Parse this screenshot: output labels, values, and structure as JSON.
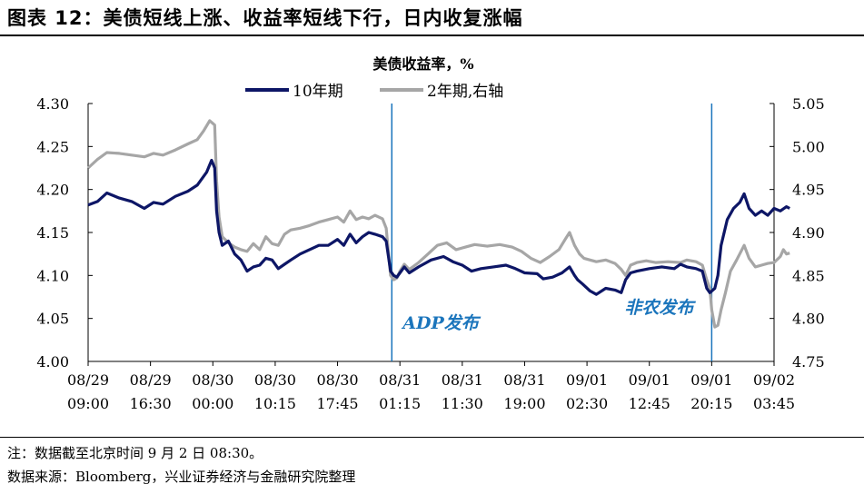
{
  "figure": {
    "title": "图表 12：美债短线上涨、收益率短线下行，日内收复涨幅",
    "note": "注：数据截至北京时间 9 月 2 日 08:30。",
    "source": "数据来源：Bloomberg，兴业证券经济与金融研究院整理"
  },
  "chart_data": {
    "type": "line",
    "title": "美债收益率，%",
    "x_tick_labels": [
      [
        "08/29",
        "09:00"
      ],
      [
        "08/29",
        "16:30"
      ],
      [
        "08/30",
        "00:00"
      ],
      [
        "08/30",
        "10:15"
      ],
      [
        "08/30",
        "17:45"
      ],
      [
        "08/31",
        "01:15"
      ],
      [
        "08/31",
        "11:30"
      ],
      [
        "08/31",
        "19:00"
      ],
      [
        "09/01",
        "02:30"
      ],
      [
        "09/01",
        "12:45"
      ],
      [
        "09/01",
        "20:15"
      ],
      [
        "09/02",
        "03:45"
      ]
    ],
    "x_range": [
      0,
      11
    ],
    "y_left": {
      "range": [
        4.0,
        4.3
      ],
      "ticks": [
        "4.00",
        "4.05",
        "4.10",
        "4.15",
        "4.20",
        "4.25",
        "4.30"
      ]
    },
    "y_right": {
      "range": [
        4.75,
        5.05
      ],
      "ticks": [
        "4.75",
        "4.80",
        "4.85",
        "4.90",
        "4.95",
        "5.00",
        "5.05"
      ]
    },
    "series": [
      {
        "name": "10年期",
        "axis": "left",
        "color": "#0d1666",
        "points": [
          [
            0,
            4.182
          ],
          [
            0.15,
            4.186
          ],
          [
            0.3,
            4.196
          ],
          [
            0.5,
            4.19
          ],
          [
            0.7,
            4.186
          ],
          [
            0.9,
            4.178
          ],
          [
            1.05,
            4.185
          ],
          [
            1.2,
            4.183
          ],
          [
            1.4,
            4.192
          ],
          [
            1.6,
            4.198
          ],
          [
            1.75,
            4.205
          ],
          [
            1.9,
            4.22
          ],
          [
            1.98,
            4.234
          ],
          [
            2.03,
            4.225
          ],
          [
            2.06,
            4.175
          ],
          [
            2.1,
            4.15
          ],
          [
            2.15,
            4.135
          ],
          [
            2.25,
            4.14
          ],
          [
            2.35,
            4.125
          ],
          [
            2.45,
            4.118
          ],
          [
            2.55,
            4.105
          ],
          [
            2.65,
            4.11
          ],
          [
            2.75,
            4.112
          ],
          [
            2.85,
            4.12
          ],
          [
            2.95,
            4.118
          ],
          [
            3.05,
            4.108
          ],
          [
            3.15,
            4.113
          ],
          [
            3.25,
            4.118
          ],
          [
            3.4,
            4.125
          ],
          [
            3.55,
            4.13
          ],
          [
            3.7,
            4.135
          ],
          [
            3.85,
            4.135
          ],
          [
            4.0,
            4.142
          ],
          [
            4.1,
            4.135
          ],
          [
            4.2,
            4.148
          ],
          [
            4.3,
            4.138
          ],
          [
            4.4,
            4.145
          ],
          [
            4.5,
            4.15
          ],
          [
            4.6,
            4.148
          ],
          [
            4.72,
            4.145
          ],
          [
            4.78,
            4.14
          ],
          [
            4.85,
            4.105
          ],
          [
            4.9,
            4.1
          ],
          [
            4.95,
            4.098
          ],
          [
            5.0,
            4.103
          ],
          [
            5.07,
            4.11
          ],
          [
            5.15,
            4.103
          ],
          [
            5.3,
            4.11
          ],
          [
            5.5,
            4.118
          ],
          [
            5.7,
            4.122
          ],
          [
            5.85,
            4.116
          ],
          [
            6.0,
            4.112
          ],
          [
            6.15,
            4.105
          ],
          [
            6.3,
            4.108
          ],
          [
            6.5,
            4.11
          ],
          [
            6.7,
            4.112
          ],
          [
            6.85,
            4.108
          ],
          [
            7.0,
            4.103
          ],
          [
            7.2,
            4.102
          ],
          [
            7.3,
            4.096
          ],
          [
            7.45,
            4.098
          ],
          [
            7.6,
            4.103
          ],
          [
            7.72,
            4.11
          ],
          [
            7.8,
            4.1
          ],
          [
            7.85,
            4.095
          ],
          [
            7.93,
            4.09
          ],
          [
            8.05,
            4.082
          ],
          [
            8.15,
            4.078
          ],
          [
            8.3,
            4.085
          ],
          [
            8.45,
            4.083
          ],
          [
            8.55,
            4.08
          ],
          [
            8.62,
            4.095
          ],
          [
            8.7,
            4.103
          ],
          [
            8.8,
            4.105
          ],
          [
            9.0,
            4.108
          ],
          [
            9.2,
            4.11
          ],
          [
            9.4,
            4.108
          ],
          [
            9.5,
            4.113
          ],
          [
            9.6,
            4.11
          ],
          [
            9.75,
            4.108
          ],
          [
            9.85,
            4.105
          ],
          [
            9.92,
            4.085
          ],
          [
            9.97,
            4.08
          ],
          [
            10.05,
            4.085
          ],
          [
            10.1,
            4.1
          ],
          [
            10.15,
            4.135
          ],
          [
            10.25,
            4.165
          ],
          [
            10.35,
            4.178
          ],
          [
            10.45,
            4.185
          ],
          [
            10.52,
            4.195
          ],
          [
            10.6,
            4.178
          ],
          [
            10.7,
            4.17
          ],
          [
            10.8,
            4.175
          ],
          [
            10.9,
            4.17
          ],
          [
            11.0,
            4.178
          ],
          [
            11.1,
            4.175
          ],
          [
            11.2,
            4.18
          ],
          [
            11.25,
            4.178
          ]
        ]
      },
      {
        "name": "2年期,右轴",
        "axis": "right",
        "color": "#a6a6a6",
        "points": [
          [
            0,
            4.975
          ],
          [
            0.15,
            4.985
          ],
          [
            0.3,
            4.993
          ],
          [
            0.5,
            4.992
          ],
          [
            0.7,
            4.99
          ],
          [
            0.9,
            4.988
          ],
          [
            1.05,
            4.992
          ],
          [
            1.2,
            4.99
          ],
          [
            1.4,
            4.996
          ],
          [
            1.6,
            5.003
          ],
          [
            1.75,
            5.008
          ],
          [
            1.85,
            5.018
          ],
          [
            1.95,
            5.03
          ],
          [
            2.03,
            5.025
          ],
          [
            2.06,
            4.96
          ],
          [
            2.1,
            4.918
          ],
          [
            2.15,
            4.895
          ],
          [
            2.25,
            4.888
          ],
          [
            2.35,
            4.883
          ],
          [
            2.45,
            4.88
          ],
          [
            2.55,
            4.878
          ],
          [
            2.65,
            4.887
          ],
          [
            2.75,
            4.88
          ],
          [
            2.85,
            4.895
          ],
          [
            2.95,
            4.887
          ],
          [
            3.05,
            4.885
          ],
          [
            3.15,
            4.898
          ],
          [
            3.25,
            4.903
          ],
          [
            3.4,
            4.905
          ],
          [
            3.55,
            4.908
          ],
          [
            3.7,
            4.912
          ],
          [
            3.85,
            4.915
          ],
          [
            4.0,
            4.918
          ],
          [
            4.1,
            4.912
          ],
          [
            4.2,
            4.925
          ],
          [
            4.3,
            4.915
          ],
          [
            4.4,
            4.918
          ],
          [
            4.5,
            4.916
          ],
          [
            4.6,
            4.92
          ],
          [
            4.72,
            4.916
          ],
          [
            4.78,
            4.905
          ],
          [
            4.85,
            4.85
          ],
          [
            4.9,
            4.845
          ],
          [
            4.95,
            4.847
          ],
          [
            5.0,
            4.855
          ],
          [
            5.07,
            4.863
          ],
          [
            5.15,
            4.857
          ],
          [
            5.3,
            4.865
          ],
          [
            5.45,
            4.875
          ],
          [
            5.6,
            4.885
          ],
          [
            5.75,
            4.888
          ],
          [
            5.9,
            4.88
          ],
          [
            6.05,
            4.883
          ],
          [
            6.2,
            4.886
          ],
          [
            6.4,
            4.884
          ],
          [
            6.6,
            4.886
          ],
          [
            6.8,
            4.883
          ],
          [
            6.95,
            4.878
          ],
          [
            7.1,
            4.87
          ],
          [
            7.25,
            4.865
          ],
          [
            7.4,
            4.872
          ],
          [
            7.55,
            4.88
          ],
          [
            7.65,
            4.892
          ],
          [
            7.72,
            4.9
          ],
          [
            7.8,
            4.885
          ],
          [
            7.88,
            4.875
          ],
          [
            7.95,
            4.87
          ],
          [
            8.05,
            4.868
          ],
          [
            8.15,
            4.866
          ],
          [
            8.3,
            4.868
          ],
          [
            8.45,
            4.864
          ],
          [
            8.55,
            4.857
          ],
          [
            8.62,
            4.85
          ],
          [
            8.7,
            4.862
          ],
          [
            8.8,
            4.865
          ],
          [
            8.95,
            4.867
          ],
          [
            9.1,
            4.865
          ],
          [
            9.3,
            4.866
          ],
          [
            9.5,
            4.865
          ],
          [
            9.6,
            4.868
          ],
          [
            9.75,
            4.866
          ],
          [
            9.85,
            4.862
          ],
          [
            9.92,
            4.845
          ],
          [
            9.97,
            4.835
          ],
          [
            10.0,
            4.81
          ],
          [
            10.05,
            4.79
          ],
          [
            10.1,
            4.792
          ],
          [
            10.15,
            4.81
          ],
          [
            10.22,
            4.83
          ],
          [
            10.3,
            4.855
          ],
          [
            10.4,
            4.868
          ],
          [
            10.52,
            4.885
          ],
          [
            10.6,
            4.87
          ],
          [
            10.7,
            4.86
          ],
          [
            10.8,
            4.862
          ],
          [
            10.9,
            4.864
          ],
          [
            11.0,
            4.865
          ],
          [
            11.1,
            4.872
          ],
          [
            11.15,
            4.88
          ],
          [
            11.2,
            4.875
          ],
          [
            11.25,
            4.876
          ]
        ]
      }
    ],
    "annotations": [
      {
        "label": "ADP发布",
        "x": 4.87,
        "color": "#1b75bc"
      },
      {
        "label": "非农发布",
        "x": 10.0,
        "color": "#1b75bc"
      }
    ]
  }
}
